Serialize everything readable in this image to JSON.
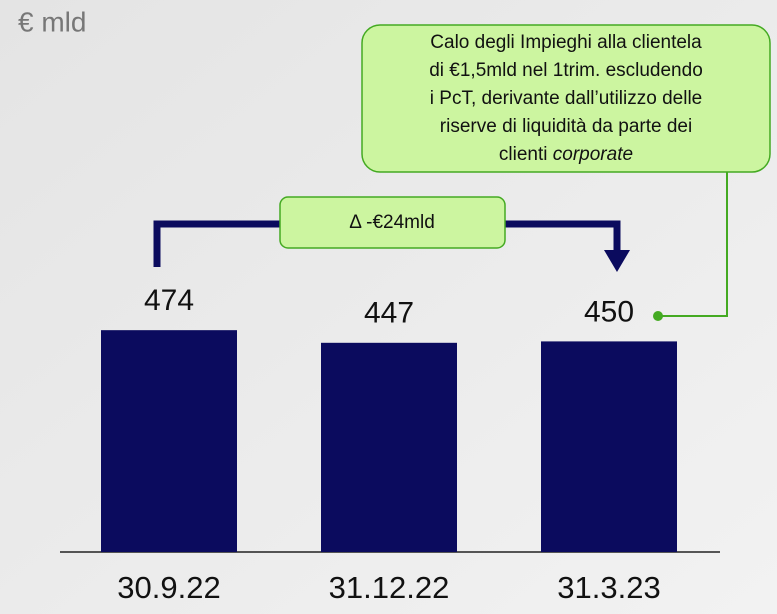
{
  "chart_data": {
    "type": "bar",
    "unit_label": "€ mld",
    "categories": [
      "30.9.22",
      "31.12.22",
      "31.3.23"
    ],
    "values": [
      474,
      447,
      450
    ],
    "color": "#0b0b5e",
    "ylim": [
      0,
      500
    ],
    "delta_label": "Δ -€24mld",
    "annotation": {
      "lines": [
        "Calo degli Impieghi alla clientela",
        "di €1,5mld nel 1trim. escludendo",
        "i PcT, derivante dall’utilizzo delle",
        "riserve di liquidità da parte dei"
      ],
      "last_line": "clienti",
      "last_line_italic": "corporate"
    }
  }
}
